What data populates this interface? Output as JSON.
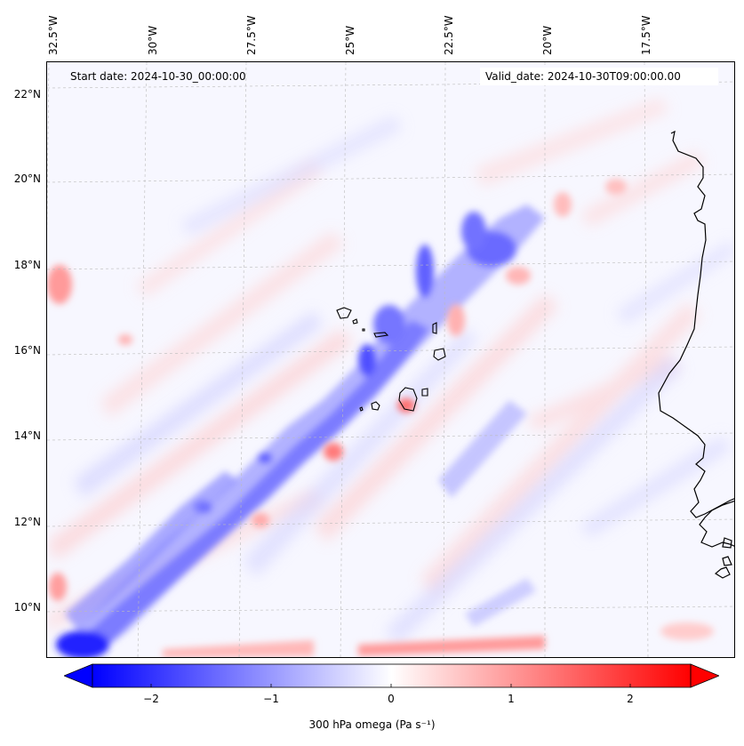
{
  "header": {
    "start_date": "Start date: 2024-10-30_00:00:00",
    "valid_date": "Valid_date: 2024-10-30T09:00:00.00"
  },
  "map": {
    "longitude_labels": [
      "32.5°W",
      "30°W",
      "27.5°W",
      "25°W",
      "22.5°W",
      "20°W",
      "17.5°W"
    ],
    "latitude_labels": [
      "22°N",
      "20°N",
      "18°N",
      "16°N",
      "14°N",
      "12°N",
      "10°N"
    ],
    "colormap": "bwr",
    "colors": {
      "negative": "#0000ff",
      "neutral": "#ffffff",
      "positive": "#ff0000",
      "coast": "#000000"
    },
    "gridlines": true
  },
  "colorbar": {
    "ticks": [
      "−2",
      "−1",
      "0",
      "1",
      "2"
    ],
    "range": [
      -2.7,
      2.7
    ],
    "extend": "both",
    "label": "300 hPa omega (Pa s⁻¹)"
  }
}
